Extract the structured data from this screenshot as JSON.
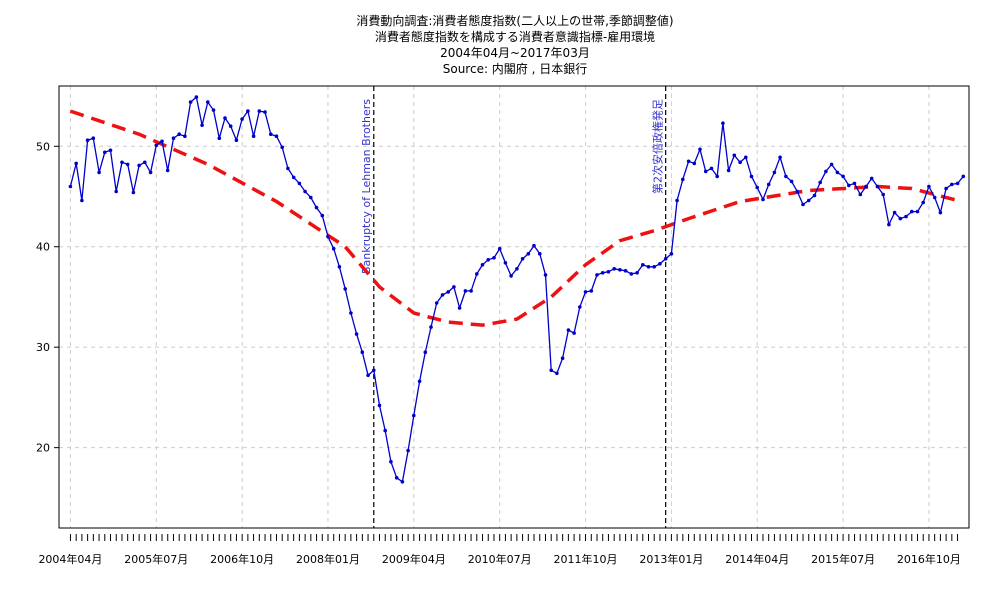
{
  "titles": [
    "消費動向調査:消費者態度指数(二人以上の世帯,季節調整値)",
    "消費者態度指数を構成する消費者意識指標-雇用環境",
    "2004年04月~2017年03月",
    "Source: 内閣府 , 日本銀行"
  ],
  "colors": {
    "series": "#0000cc",
    "trend": "#ee1111",
    "event": "#000000",
    "event_label": "#3333cc",
    "grid": "#cccccc"
  },
  "chart_data": {
    "type": "line",
    "title": "消費動向調査:消費者態度指数(二人以上の世帯,季節調整値)",
    "subtitle": "消費者態度指数を構成する消費者意識指標-雇用環境",
    "period": "2004年04月~2017年03月",
    "source": "Source: 内閣府 , 日本銀行",
    "xlabel": "",
    "ylabel": "",
    "ylim": [
      12,
      56
    ],
    "yticks": [
      20,
      30,
      40,
      50
    ],
    "xticks": [
      {
        "date": "2004-04",
        "label": "2004年04月"
      },
      {
        "date": "2005-07",
        "label": "2005年07月"
      },
      {
        "date": "2006-10",
        "label": "2006年10月"
      },
      {
        "date": "2008-01",
        "label": "2008年01月"
      },
      {
        "date": "2009-04",
        "label": "2009年04月"
      },
      {
        "date": "2010-07",
        "label": "2010年07月"
      },
      {
        "date": "2011-10",
        "label": "2011年10月"
      },
      {
        "date": "2013-01",
        "label": "2013年01月"
      },
      {
        "date": "2014-04",
        "label": "2014年04月"
      },
      {
        "date": "2015-07",
        "label": "2015年07月"
      },
      {
        "date": "2016-10",
        "label": "2016年10月"
      }
    ],
    "grid": true,
    "events": [
      {
        "date": "2008-09",
        "label": "Bankruptcy of Lehman Brothers"
      },
      {
        "date": "2012-12",
        "label": "第2次安倍政権発足"
      }
    ],
    "series": [
      {
        "style": "line-points",
        "start": "2004-04",
        "values": [
          46,
          48.3,
          44.6,
          50.6,
          50.8,
          47.4,
          49.4,
          49.6,
          45.5,
          48.4,
          48.2,
          45.4,
          48.1,
          48.4,
          47.4,
          50.1,
          50.5,
          47.6,
          50.8,
          51.2,
          51,
          54.4,
          54.9,
          52.1,
          54.4,
          53.6,
          50.8,
          52.8,
          52,
          50.6,
          52.7,
          53.5,
          51,
          53.5,
          53.4,
          51.2,
          51,
          49.9,
          47.8,
          46.9,
          46.3,
          45.5,
          44.9,
          43.9,
          43.1,
          41,
          39.8,
          38,
          35.8,
          33.4,
          31.3,
          29.5,
          27.2,
          27.7,
          24.2,
          21.7,
          18.6,
          17,
          16.6,
          19.7,
          23.2,
          26.6,
          29.5,
          32,
          34.4,
          35.2,
          35.5,
          36,
          33.9,
          35.6,
          35.6,
          37.3,
          38.2,
          38.7,
          38.9,
          39.8,
          38.4,
          37.1,
          37.8,
          38.8,
          39.3,
          40.1,
          39.3,
          37.2,
          27.7,
          27.4,
          28.9,
          31.7,
          31.4,
          34,
          35.5,
          35.6,
          37.2,
          37.4,
          37.5,
          37.8,
          37.7,
          37.6,
          37.3,
          37.4,
          38.2,
          38,
          38,
          38.3,
          38.8,
          39.3,
          44.6,
          46.7,
          48.5,
          48.3,
          49.7,
          47.5,
          47.8,
          47,
          52.3,
          47.6,
          49.1,
          48.4,
          48.9,
          47,
          45.9,
          44.7,
          46.2,
          47.4,
          48.9,
          47,
          46.5,
          45.5,
          44.2,
          44.6,
          45.1,
          46.4,
          47.5,
          48.2,
          47.4,
          47,
          46.1,
          46.3,
          45.2,
          46,
          46.8,
          46,
          45.2,
          42.2,
          43.4,
          42.8,
          43,
          43.5,
          43.5,
          44.4,
          46,
          44.9,
          43.4,
          45.8,
          46.2,
          46.3,
          47
        ]
      },
      {
        "style": "dashed-trend",
        "x": [
          "2004-04",
          "2005-04",
          "2006-04",
          "2007-04",
          "2008-04",
          "2008-10",
          "2009-04",
          "2009-10",
          "2010-04",
          "2010-10",
          "2011-04",
          "2011-10",
          "2012-04",
          "2012-10",
          "2013-04",
          "2014-01",
          "2015-01",
          "2016-01",
          "2016-07",
          "2017-03"
        ],
        "values": [
          53.5,
          51.2,
          48.2,
          44.5,
          40,
          36,
          33.4,
          32.5,
          32.2,
          32.8,
          35,
          38.2,
          40.6,
          41.6,
          42.8,
          44.5,
          45.6,
          46,
          45.8,
          44.6
        ]
      }
    ]
  }
}
